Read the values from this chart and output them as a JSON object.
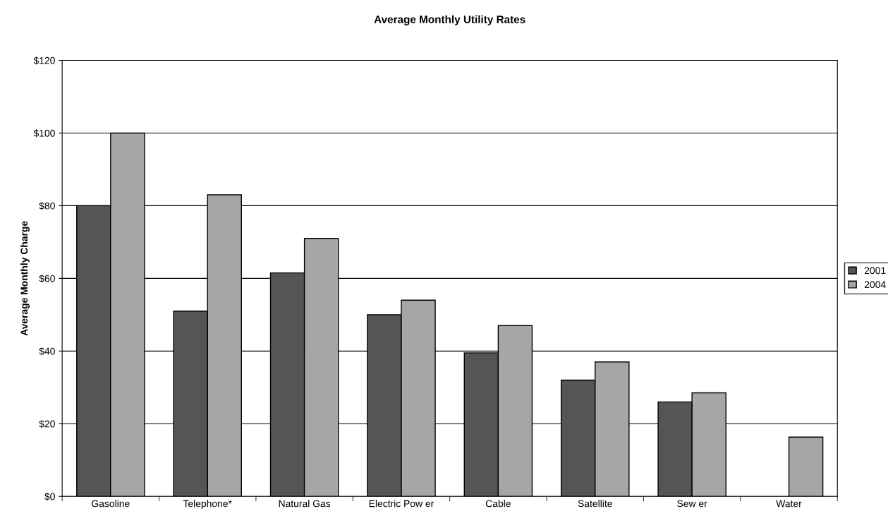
{
  "chart_data": {
    "type": "bar",
    "title": "Average Monthly Utility Rates",
    "ylabel": "Average Monthly Charge",
    "categories": [
      "Gasoline",
      "Telephone*",
      "Natural Gas",
      "Electric Pow er",
      "Cable",
      "Satellite",
      "Sew er",
      "Water"
    ],
    "series": [
      {
        "name": "2001",
        "color": "#555555",
        "values": [
          80,
          51,
          61.5,
          50,
          39.5,
          32,
          26,
          null
        ]
      },
      {
        "name": "2004",
        "color": "#a6a6a6",
        "values": [
          100,
          83,
          71,
          54,
          47,
          37,
          28.5,
          16.3
        ]
      }
    ],
    "ylim": [
      0,
      120
    ],
    "yticks": [
      {
        "value": 0,
        "label": "$0"
      },
      {
        "value": 20,
        "label": "$20"
      },
      {
        "value": 40,
        "label": "$40"
      },
      {
        "value": 60,
        "label": "$60"
      },
      {
        "value": 80,
        "label": "$80"
      },
      {
        "value": 100,
        "label": "$100"
      },
      {
        "value": 120,
        "label": "$120"
      }
    ],
    "grid": "y",
    "legend": "right"
  }
}
